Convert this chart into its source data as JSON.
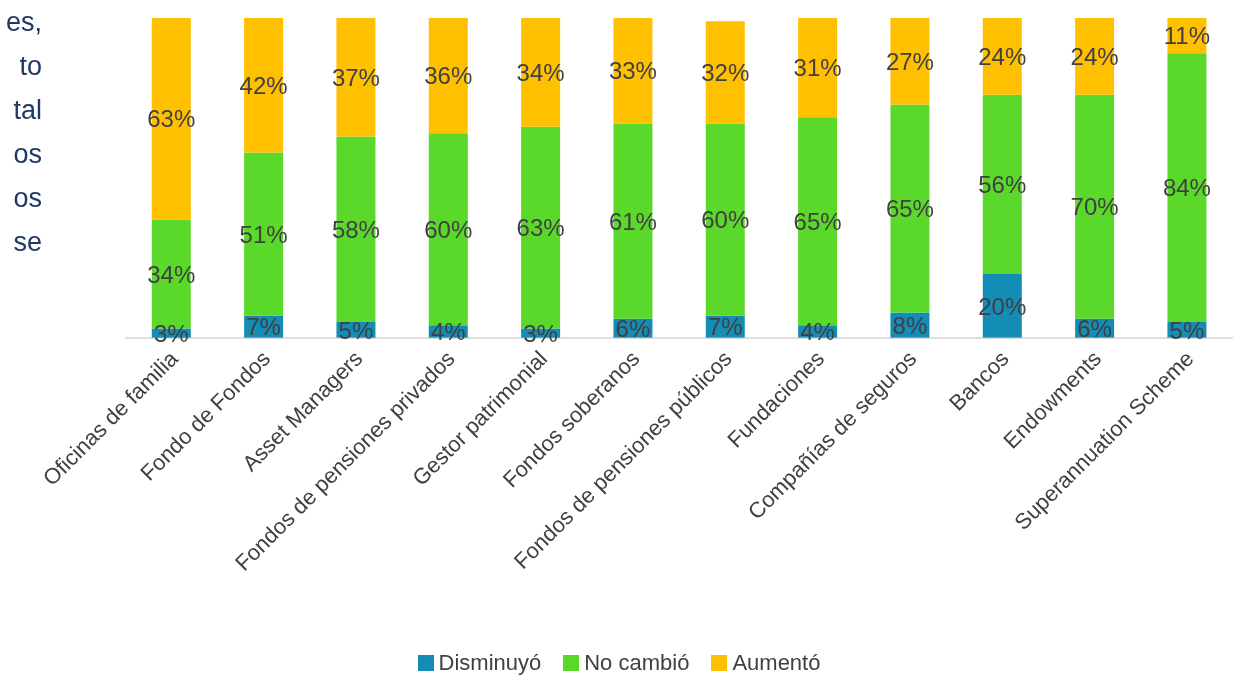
{
  "chart_data": {
    "type": "bar",
    "stacked": true,
    "categories": [
      "Oficinas de familia",
      "Fondo de Fondos",
      "Asset Managers",
      "Fondos de pensiones privados",
      "Gestor patrimonial",
      "Fondos soberanos",
      "Fondos de pensiones públicos",
      "Fundaciones",
      "Compañías de seguros",
      "Bancos",
      "Endowments",
      "Superannuation Scheme"
    ],
    "series": [
      {
        "name": "Disminuyó",
        "color": "#138db5",
        "values": [
          3,
          7,
          5,
          4,
          3,
          6,
          7,
          4,
          8,
          20,
          6,
          5
        ],
        "value_labels": [
          "3%",
          "7%",
          "5%",
          "4%",
          "3%",
          "6%",
          "7%",
          "4%",
          "8%",
          "20%",
          "6%",
          "5%"
        ]
      },
      {
        "name": "No cambió",
        "color": "#5bd92b",
        "values": [
          34,
          51,
          58,
          60,
          63,
          61,
          60,
          65,
          65,
          56,
          70,
          84
        ],
        "value_labels": [
          "34%",
          "51%",
          "58%",
          "60%",
          "63%",
          "61%",
          "60%",
          "65%",
          "65%",
          "56%",
          "70%",
          "84%"
        ]
      },
      {
        "name": "Aumentó",
        "color": "#ffc000",
        "values": [
          63,
          42,
          37,
          36,
          34,
          33,
          32,
          31,
          27,
          24,
          24,
          11
        ],
        "value_labels": [
          "63%",
          "42%",
          "37%",
          "36%",
          "34%",
          "33%",
          "32%",
          "31%",
          "27%",
          "24%",
          "24%",
          "11%"
        ]
      }
    ],
    "grid": false,
    "legend": "bottom",
    "annotations": [
      "es,\nto\ntal\nos\nos\nse"
    ]
  }
}
